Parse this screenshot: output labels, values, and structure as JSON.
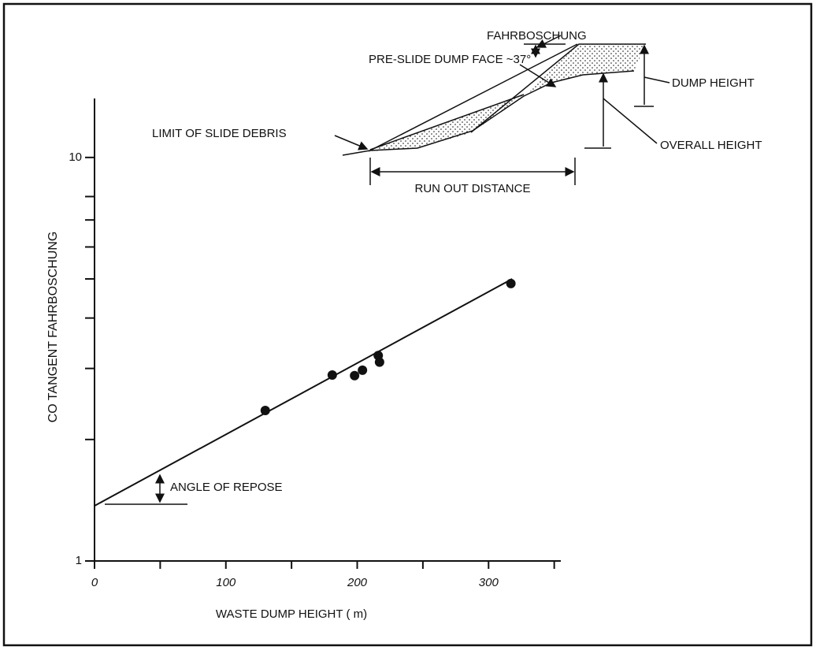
{
  "chart_data": {
    "type": "scatter",
    "x_label": "WASTE DUMP HEIGHT ( m)",
    "y_label": "CO TANGENT  FAHRBOSCHUNG",
    "x": [
      130,
      181,
      198,
      204,
      216,
      217,
      317
    ],
    "values": [
      2.36,
      2.89,
      2.88,
      2.97,
      3.23,
      3.11,
      4.87
    ],
    "color": "#111111",
    "xlim": [
      0,
      355
    ],
    "ylim": [
      1,
      14
    ],
    "log_y": true,
    "xticks": [
      0,
      100,
      200,
      300
    ],
    "xminorticks": [
      50,
      150,
      250,
      350
    ],
    "yticks": [
      1,
      10
    ],
    "yminorticks": [
      2,
      3,
      4,
      5,
      6,
      7,
      8
    ],
    "fit_line": {
      "x": [
        0,
        318
      ],
      "values": [
        1.37,
        5.0
      ]
    },
    "annotation": "ANGLE OF REPOSE"
  },
  "inset_diagram": {
    "labels": {
      "fahrboschung": "FAHRBOSCHUNG",
      "pre_slide_face": "PRE-SLIDE DUMP FACE ~37°",
      "limit_of_debris": "LIMIT OF SLIDE DEBRIS",
      "run_out": "RUN OUT DISTANCE",
      "dump_height": "DUMP HEIGHT",
      "overall_height": "OVERALL HEIGHT"
    }
  }
}
